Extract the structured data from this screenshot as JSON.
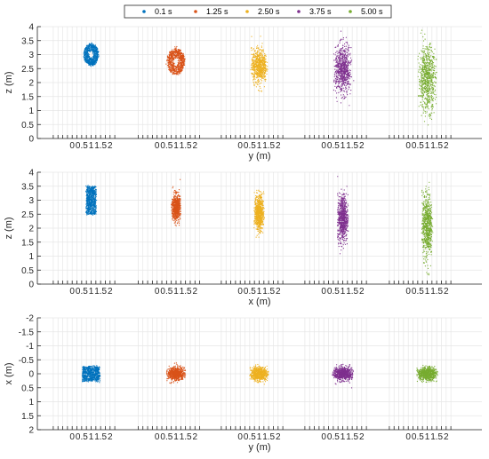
{
  "legend": {
    "placement": "top",
    "entries": [
      {
        "label": "0.1 s",
        "color": "#0072BD"
      },
      {
        "label": "1.25 s",
        "color": "#D95319"
      },
      {
        "label": "2.50 s",
        "color": "#EDB120"
      },
      {
        "label": "3.75 s",
        "color": "#7E2F8E"
      },
      {
        "label": "5.00 s",
        "color": "#77AC30"
      }
    ]
  },
  "chart_data": [
    {
      "type": "scatter",
      "title": "",
      "xlabel": "y (m)",
      "ylabel": "z (m)",
      "ylim": [
        0,
        4
      ],
      "y_ticks": [
        "0",
        "0.5",
        "1",
        "1.5",
        "2",
        "2.5",
        "3",
        "3.5",
        "4"
      ],
      "x_group_ticks": [
        "0",
        "0.5",
        "1",
        "1.5",
        "2"
      ],
      "grid": true,
      "series": [
        {
          "name": "0.1 s",
          "shape": "ring",
          "center": [
            1.0,
            3.0
          ],
          "spread": [
            0.38,
            0.38
          ],
          "inner": 0.26
        },
        {
          "name": "1.25 s",
          "shape": "ring",
          "center": [
            1.0,
            2.75
          ],
          "spread": [
            0.45,
            0.45
          ],
          "inner": 0.22
        },
        {
          "name": "2.50 s",
          "shape": "blob",
          "center": [
            1.0,
            2.6
          ],
          "spread": [
            0.45,
            0.7
          ]
        },
        {
          "name": "3.75 s",
          "shape": "blob",
          "center": [
            1.0,
            2.45
          ],
          "spread": [
            0.5,
            1.0
          ]
        },
        {
          "name": "5.00 s",
          "shape": "blob",
          "center": [
            1.0,
            2.15
          ],
          "spread": [
            0.5,
            1.35
          ]
        }
      ]
    },
    {
      "type": "scatter",
      "title": "",
      "xlabel": "x (m)",
      "ylabel": "z (m)",
      "ylim": [
        0,
        4
      ],
      "y_ticks": [
        "0",
        "0.5",
        "1",
        "1.5",
        "2",
        "2.5",
        "3",
        "3.5",
        "4"
      ],
      "x_group_ticks": [
        "0",
        "0.5",
        "1",
        "1.5",
        "2"
      ],
      "grid": true,
      "series": [
        {
          "name": "0.1 s",
          "shape": "rect",
          "center": [
            1.0,
            3.0
          ],
          "spread": [
            0.25,
            0.5
          ]
        },
        {
          "name": "1.25 s",
          "shape": "blob",
          "center": [
            1.0,
            2.75
          ],
          "spread": [
            0.25,
            0.55
          ]
        },
        {
          "name": "2.50 s",
          "shape": "blob",
          "center": [
            1.0,
            2.55
          ],
          "spread": [
            0.27,
            0.75
          ]
        },
        {
          "name": "3.75 s",
          "shape": "blob",
          "center": [
            1.0,
            2.35
          ],
          "spread": [
            0.3,
            1.0
          ]
        },
        {
          "name": "5.00 s",
          "shape": "blob",
          "center": [
            1.0,
            2.1
          ],
          "spread": [
            0.3,
            1.35
          ]
        }
      ]
    },
    {
      "type": "scatter",
      "title": "",
      "xlabel": "y (m)",
      "ylabel": "x (m)",
      "ylim": [
        -2,
        2
      ],
      "y_reversed": true,
      "y_ticks": [
        "-2",
        "-1.5",
        "-1",
        "-0.5",
        "0",
        "0.5",
        "1",
        "1.5",
        "2"
      ],
      "x_group_ticks": [
        "0",
        "0.5",
        "1",
        "1.5",
        "2"
      ],
      "grid": true,
      "series": [
        {
          "name": "0.1 s",
          "shape": "rect",
          "center": [
            1.0,
            0.0
          ],
          "spread": [
            0.45,
            0.25
          ]
        },
        {
          "name": "1.25 s",
          "shape": "blob",
          "center": [
            1.0,
            0.0
          ],
          "spread": [
            0.5,
            0.27
          ]
        },
        {
          "name": "2.50 s",
          "shape": "blob",
          "center": [
            1.0,
            0.0
          ],
          "spread": [
            0.5,
            0.27
          ]
        },
        {
          "name": "3.75 s",
          "shape": "blob",
          "center": [
            1.0,
            0.0
          ],
          "spread": [
            0.55,
            0.28
          ]
        },
        {
          "name": "5.00 s",
          "shape": "blob",
          "center": [
            1.0,
            0.0
          ],
          "spread": [
            0.55,
            0.28
          ]
        }
      ]
    }
  ]
}
